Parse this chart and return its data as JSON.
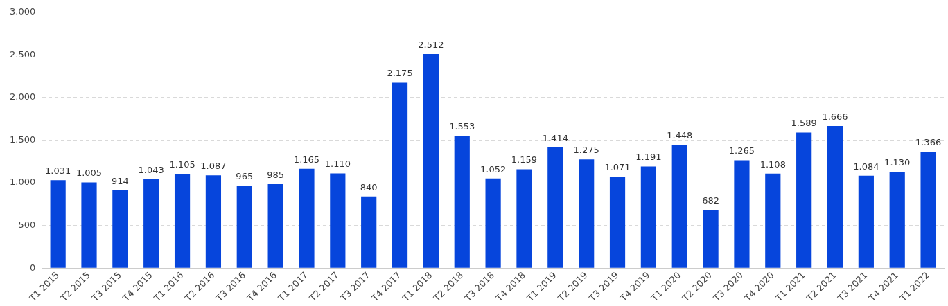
{
  "chart_data": {
    "type": "bar",
    "categories": [
      "T1 2015",
      "T2 2015",
      "T3 2015",
      "T4 2015",
      "T1 2016",
      "T2 2016",
      "T3 2016",
      "T4 2016",
      "T1 2017",
      "T2 2017",
      "T3 2017",
      "T4 2017",
      "T1 2018",
      "T2 2018",
      "T3 2018",
      "T4 2018",
      "T1 2019",
      "T2 2019",
      "T3 2019",
      "T4 2019",
      "T1 2020",
      "T2 2020",
      "T3 2020",
      "T4 2020",
      "T1 2021",
      "T2 2021",
      "T3 2021",
      "T4 2021",
      "T1 2022"
    ],
    "values": [
      1031,
      1005,
      914,
      1043,
      1105,
      1087,
      965,
      985,
      1165,
      1110,
      840,
      2175,
      2512,
      1553,
      1052,
      1159,
      1414,
      1275,
      1071,
      1191,
      1448,
      682,
      1265,
      1108,
      1589,
      1666,
      1084,
      1130,
      1366
    ],
    "value_labels": [
      "1.031",
      "1.005",
      "914",
      "1.043",
      "1.105",
      "1.087",
      "965",
      "985",
      "1.165",
      "1.110",
      "840",
      "2.175",
      "2.512",
      "1.553",
      "1.052",
      "1.159",
      "1.414",
      "1.275",
      "1.071",
      "1.191",
      "1.448",
      "682",
      "1.265",
      "1.108",
      "1.589",
      "1.666",
      "1.084",
      "1.130",
      "1.366"
    ],
    "color": "#0645dc",
    "ylim": [
      0,
      3000
    ],
    "yticks": [
      {
        "value": 0,
        "label": "0"
      },
      {
        "value": 500,
        "label": "500"
      },
      {
        "value": 1000,
        "label": "1.000"
      },
      {
        "value": 1500,
        "label": "1.500"
      },
      {
        "value": 2000,
        "label": "2.000"
      },
      {
        "value": 2500,
        "label": "2.500"
      },
      {
        "value": 3000,
        "label": "3.000"
      }
    ],
    "grid": "y",
    "legend": false
  }
}
